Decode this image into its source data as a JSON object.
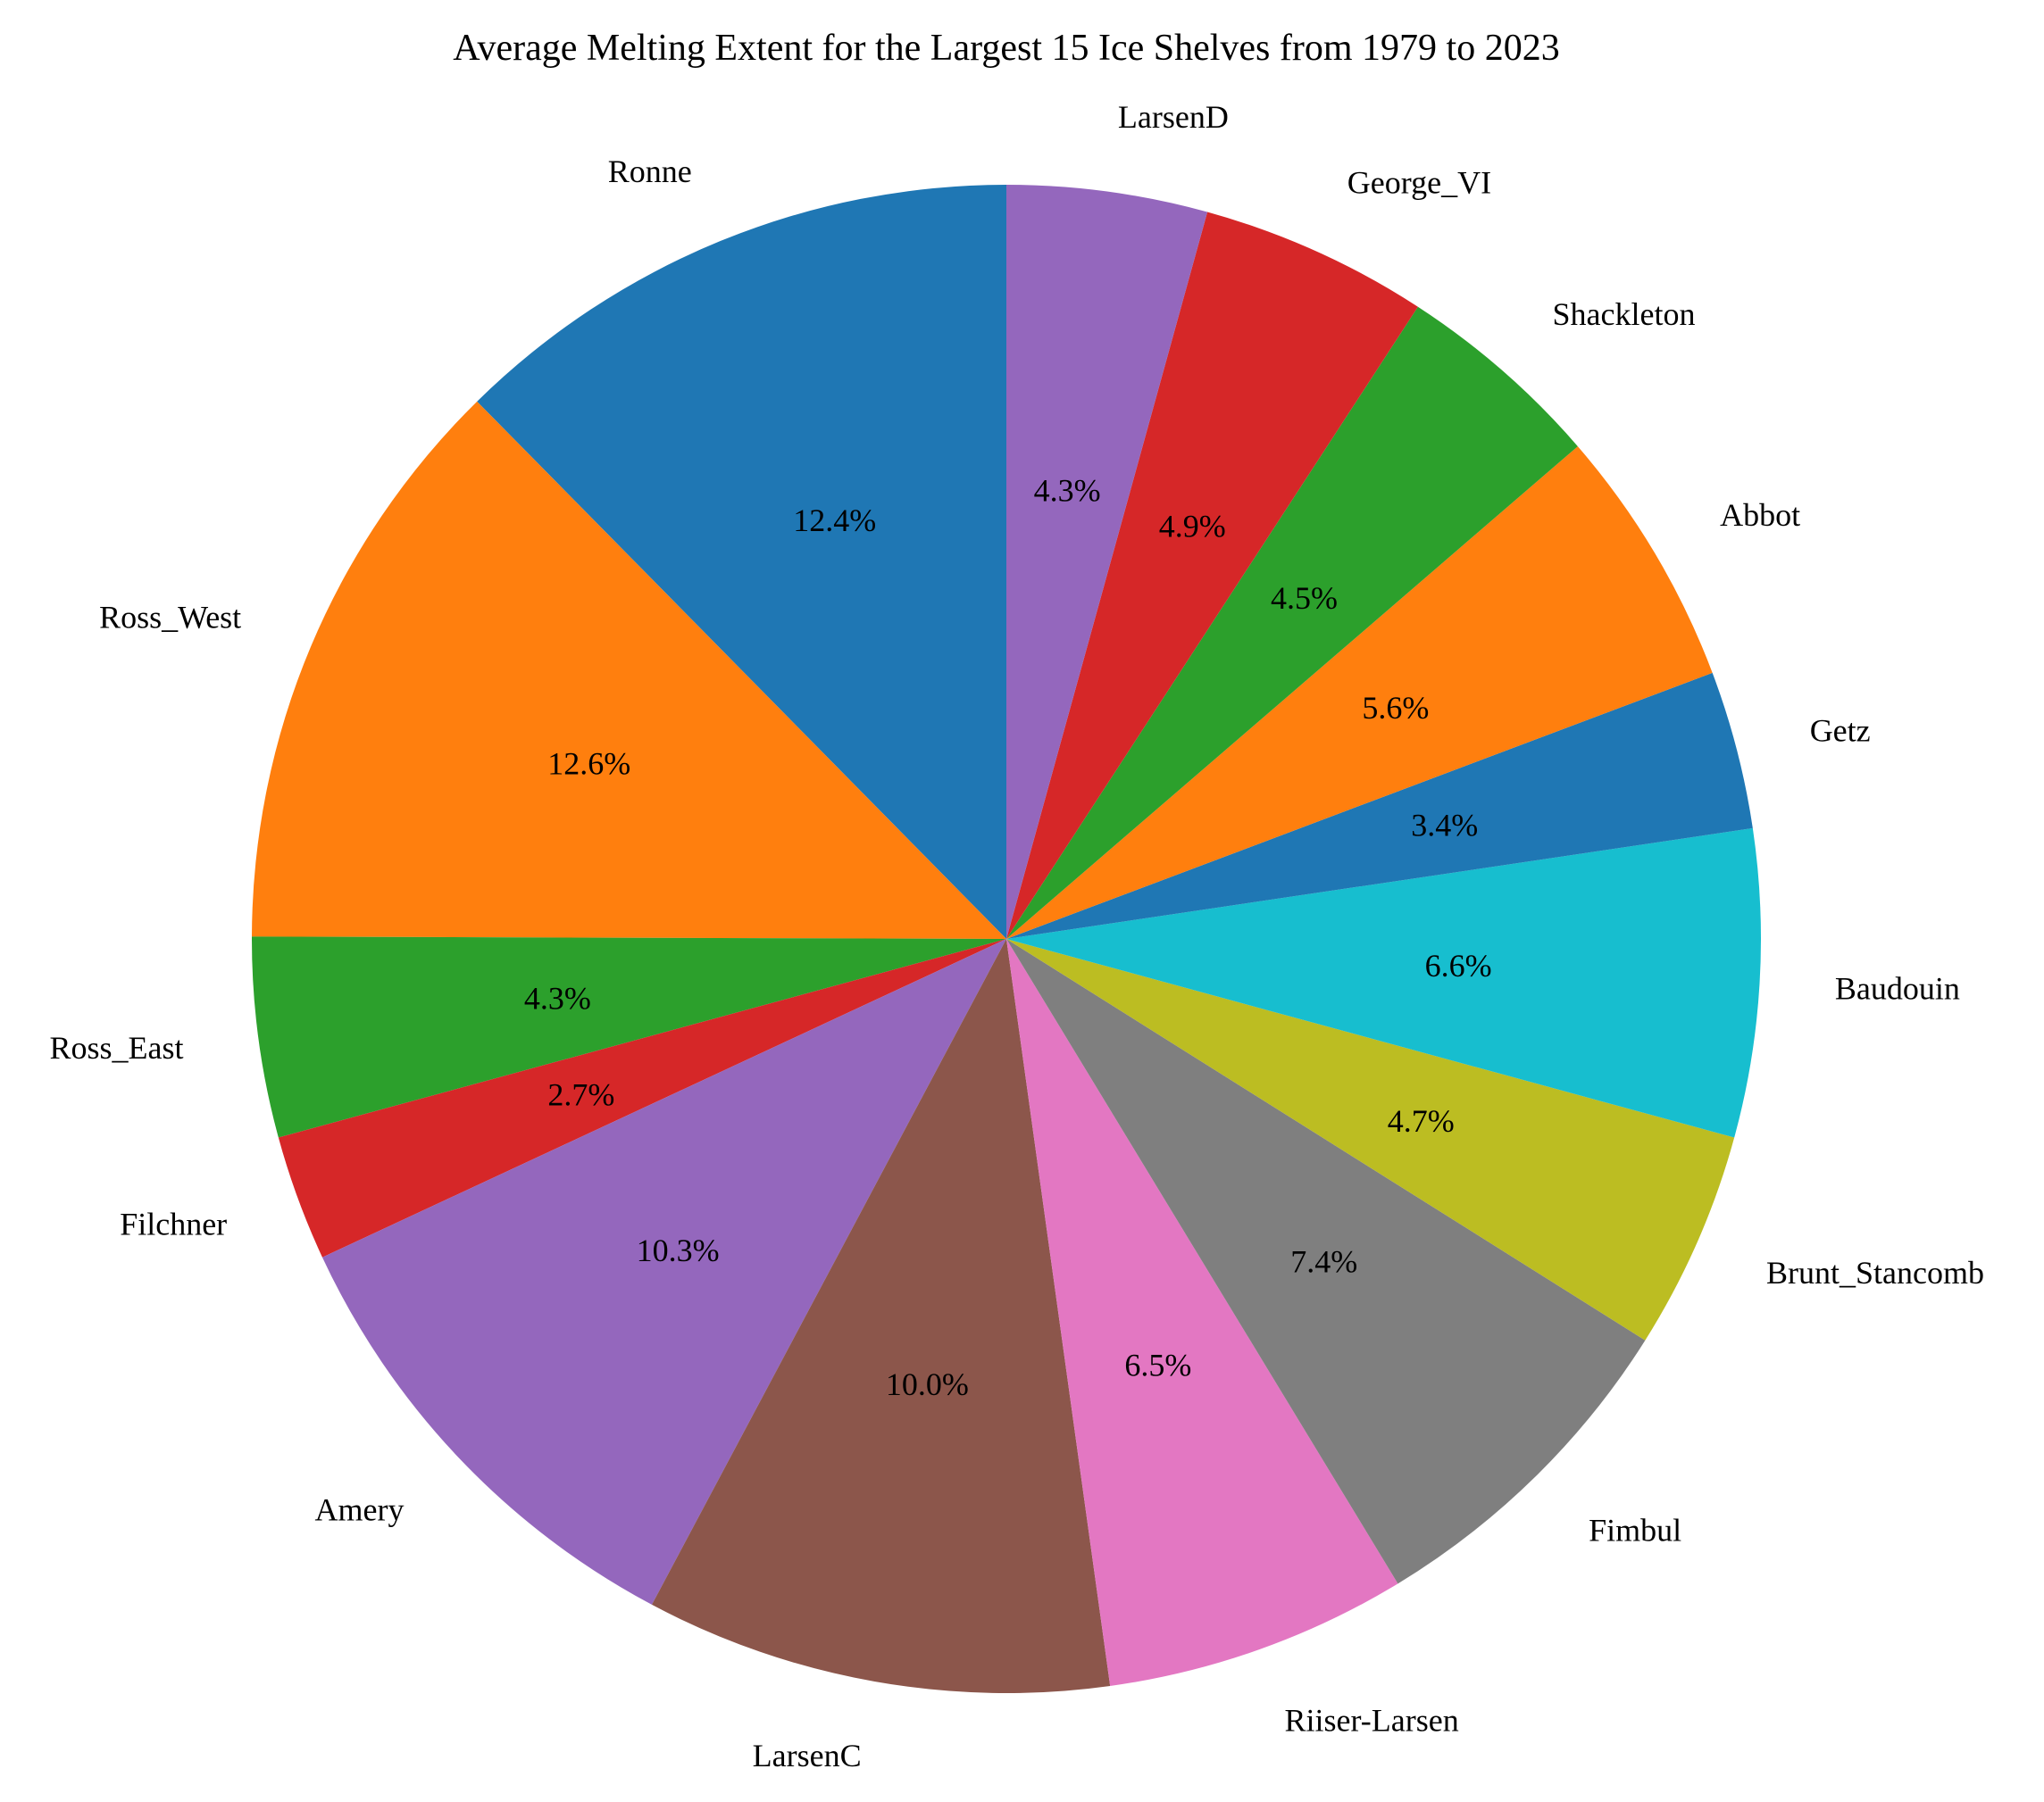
{
  "chart_data": {
    "type": "pie",
    "title": "Average Melting Extent for the Largest 15 Ice Shelves from 1979 to 2023",
    "start_angle": 90,
    "direction": "counterclockwise",
    "slices": [
      {
        "label": "Ronne",
        "value": 12.4,
        "pct_label": "12.4%",
        "color": "#1f77b4"
      },
      {
        "label": "Ross_West",
        "value": 12.6,
        "pct_label": "12.6%",
        "color": "#ff7f0e"
      },
      {
        "label": "Ross_East",
        "value": 4.3,
        "pct_label": "4.3%",
        "color": "#2ca02c"
      },
      {
        "label": "Filchner",
        "value": 2.7,
        "pct_label": "2.7%",
        "color": "#d62728"
      },
      {
        "label": "Amery",
        "value": 10.3,
        "pct_label": "10.3%",
        "color": "#9467bd"
      },
      {
        "label": "LarsenC",
        "value": 10.0,
        "pct_label": "10.0%",
        "color": "#8c564b"
      },
      {
        "label": "Riiser-Larsen",
        "value": 6.5,
        "pct_label": "6.5%",
        "color": "#e377c2"
      },
      {
        "label": "Fimbul",
        "value": 7.4,
        "pct_label": "7.4%",
        "color": "#7f7f7f"
      },
      {
        "label": "Brunt_Stancomb",
        "value": 4.7,
        "pct_label": "4.7%",
        "color": "#bcbd22"
      },
      {
        "label": "Baudouin",
        "value": 6.6,
        "pct_label": "6.6%",
        "color": "#17becf"
      },
      {
        "label": "Getz",
        "value": 3.4,
        "pct_label": "3.4%",
        "color": "#1f77b4"
      },
      {
        "label": "Abbot",
        "value": 5.6,
        "pct_label": "5.6%",
        "color": "#ff7f0e"
      },
      {
        "label": "Shackleton",
        "value": 4.5,
        "pct_label": "4.5%",
        "color": "#2ca02c"
      },
      {
        "label": "George_VI",
        "value": 4.9,
        "pct_label": "4.9%",
        "color": "#d62728"
      },
      {
        "label": "LarsenD",
        "value": 4.3,
        "pct_label": "4.3%",
        "color": "#9467bd"
      }
    ]
  }
}
